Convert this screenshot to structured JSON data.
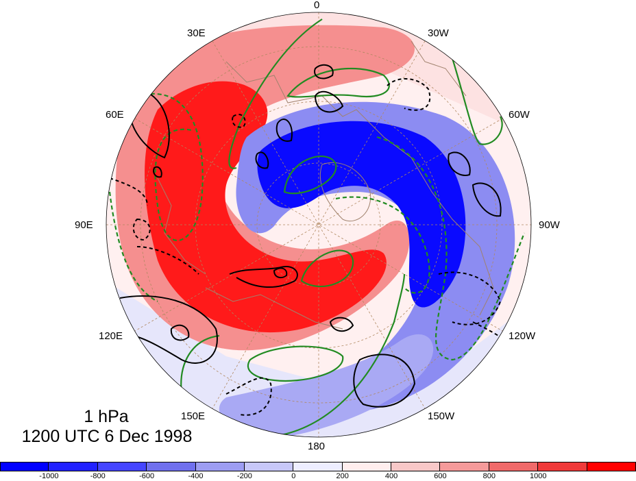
{
  "map": {
    "projection": "north polar stereographic",
    "longitude_labels": [
      "0",
      "30W",
      "60W",
      "90W",
      "120W",
      "150W",
      "180",
      "150E",
      "120E",
      "90E",
      "60E",
      "30E"
    ],
    "fill_colors": {
      "strong_negative": "#0000ff",
      "negative": "#8a8af0",
      "weak_negative": "#e8e8ff",
      "weak_positive": "#ffe8e8",
      "positive": "#f07a7a",
      "strong_positive": "#ff0000"
    },
    "contour_colors": {
      "black": "#000000",
      "green": "#228b22"
    },
    "coastline_color": "#a0826d",
    "graticule_color": "#b08860"
  },
  "title": {
    "line1": "1 hPa",
    "line2": "1200 UTC 6 Dec 1998"
  },
  "colorbar": {
    "colors": [
      "#0000ff",
      "#2222ff",
      "#4545ff",
      "#7070ee",
      "#9d9df2",
      "#c8c8f8",
      "#eeeeff",
      "#ffeeee",
      "#f8c8c8",
      "#f59a9a",
      "#f06a6a",
      "#f03a3a",
      "#ff0000"
    ],
    "labels": [
      "-1000",
      "-800",
      "-600",
      "-400",
      "-200",
      "0",
      "200",
      "400",
      "600",
      "800",
      "1000"
    ]
  }
}
